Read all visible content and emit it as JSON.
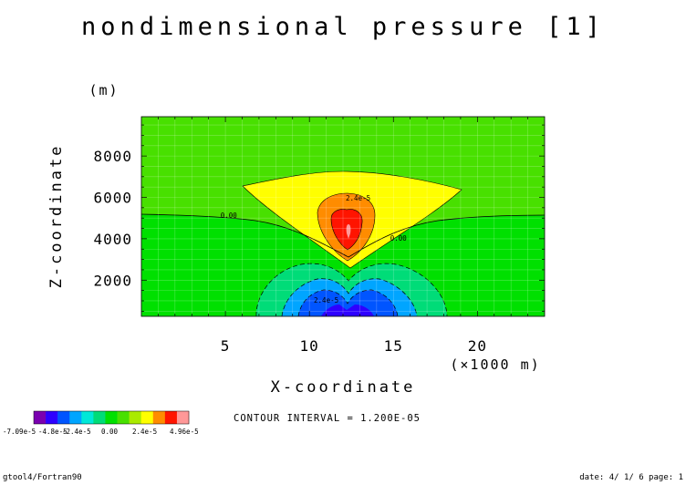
{
  "chart_data": {
    "type": "heatmap",
    "title": "nondimensional pressure [1]",
    "xlabel": "X-coordinate",
    "x_unit": "(×1000 m)",
    "ylabel": "Z-coordinate",
    "y_unit": "(m)",
    "xlim": [
      0,
      24
    ],
    "ylim": [
      250,
      9900
    ],
    "x_ticks": [
      5,
      10,
      15,
      20
    ],
    "y_ticks": [
      2000,
      4000,
      6000,
      8000
    ],
    "contour_interval_text": "CONTOUR INTERVAL = 1.200E-05",
    "contour_labels": [
      {
        "text": "0.00",
        "x": 5.2,
        "z": 5000
      },
      {
        "text": "0.00",
        "x": 15.3,
        "z": 3900
      },
      {
        "text": "2.4e-5",
        "x": 12.9,
        "z": 5850
      },
      {
        "text": "2.4e-5",
        "x": 11.0,
        "z": 900
      }
    ],
    "colorbar": {
      "labels": [
        "-7.09e-5",
        "-4.8e-5",
        "-2.4e-5",
        "0.00",
        "2.4e-5",
        "4.96e-5"
      ],
      "colors": [
        "#7a00b0",
        "#2e00ff",
        "#0055ff",
        "#00a5ff",
        "#00e8d8",
        "#00dc78",
        "#00e000",
        "#48e000",
        "#aaea00",
        "#ffff00",
        "#ff8c00",
        "#ff1400",
        "#ff9898"
      ]
    },
    "regions": [
      {
        "level": "0 to 1.2e-5",
        "color": "#48e000",
        "z_range": [
          5000,
          9900
        ]
      },
      {
        "level": "-1.2e-5 to 0",
        "color": "#00e000",
        "z_range": [
          250,
          5000
        ]
      },
      {
        "level": "1.2e-5 to 2.4e-5",
        "color": "#ffff00",
        "center_x": 12.5,
        "z_range": [
          3000,
          7100
        ]
      },
      {
        "level": "2.4e-5 to 3.6e-5",
        "color": "#ff8c00",
        "center_x": 12.5,
        "z_range": [
          3300,
          6000
        ]
      },
      {
        "level": "3.6e-5 to 4.8e-5",
        "color": "#ff1400",
        "center_x": 12.5,
        "z_range": [
          3600,
          5200
        ]
      },
      {
        "level": "> 4.8e-5",
        "color": "#ff9898",
        "center_x": 12.5,
        "z_range": [
          3900,
          4800
        ]
      },
      {
        "level": "-2.4e-5 to -1.2e-5",
        "color": "#00dc78",
        "center_x": 12.5,
        "z_range": [
          250,
          2900
        ]
      },
      {
        "level": "-3.6e-5 to -2.4e-5",
        "color": "#00a5ff",
        "center_x": 12.5,
        "z_range": [
          250,
          2300
        ]
      },
      {
        "level": "-4.8e-5 to -3.6e-5",
        "color": "#0055ff",
        "center_x": 12.5,
        "z_range": [
          250,
          1600
        ]
      },
      {
        "level": "< -4.8e-5",
        "color": "#2e00ff",
        "center_x": 12.5,
        "z_range": [
          250,
          800
        ]
      }
    ]
  },
  "footer": {
    "left": "gtool4/Fortran90",
    "right": "date: 4/ 1/ 6 page: 1"
  }
}
